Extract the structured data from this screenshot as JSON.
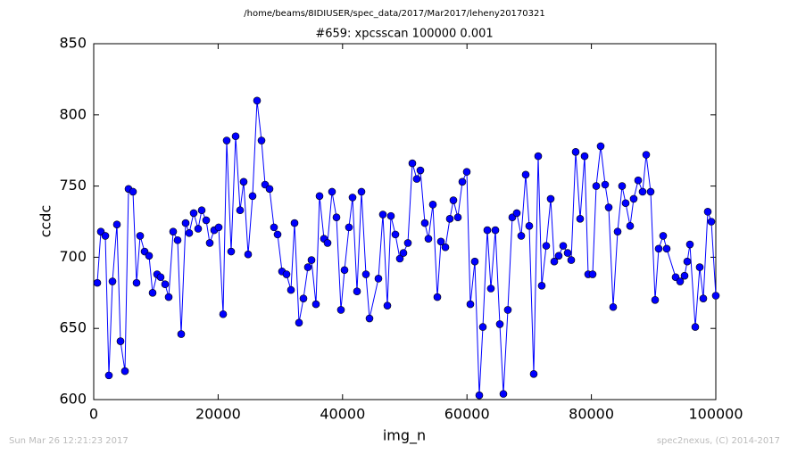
{
  "chart_data": {
    "type": "line",
    "header": "/home/beams/8IDIUSER/spec_data/2017/Mar2017/leheny20170321",
    "title": "#659: xpcsscan 100000 0.001",
    "x_label": "img_n",
    "y_label": "ccdc",
    "color": "#0000ff",
    "marker_edge_color": "#000000",
    "x": [
      574,
      1148,
      1865,
      2439,
      3013,
      3730,
      4304,
      5022,
      5595,
      6313,
      6887,
      7461,
      8178,
      8895,
      9469,
      10186,
      10760,
      11478,
      12052,
      12769,
      13486,
      14060,
      14777,
      15351,
      16069,
      16786,
      17360,
      18077,
      18651,
      19368,
      20086,
      20803,
      21377,
      22094,
      22812,
      23529,
      24103,
      24820,
      25538,
      26255,
      26972,
      27546,
      28264,
      28981,
      29555,
      30272,
      30990,
      31707,
      32281,
      32998,
      33715,
      34433,
      35007,
      35724,
      36298,
      37015,
      37589,
      38306,
      39024,
      39741,
      40315,
      41032,
      41606,
      42324,
      43041,
      43758,
      44332,
      45767,
      46484,
      47202,
      47776,
      48493,
      49210,
      49784,
      50501,
      51219,
      51936,
      52510,
      53227,
      53801,
      54519,
      55236,
      55810,
      56527,
      57244,
      57818,
      58536,
      59253,
      59970,
      60544,
      61262,
      61979,
      62553,
      63270,
      63844,
      64562,
      65279,
      65853,
      66570,
      67287,
      68005,
      68722,
      69439,
      70013,
      70731,
      71448,
      72022,
      72739,
      73457,
      74031,
      74748,
      75465,
      76183,
      76756,
      77474,
      78191,
      78909,
      79482,
      80200,
      80774,
      81491,
      82208,
      82782,
      83500,
      84217,
      84934,
      85508,
      86225,
      86799,
      87517,
      88234,
      88808,
      89525,
      90243,
      90816,
      91534,
      92108,
      93542,
      94260,
      94977,
      95408,
      95838,
      96699,
      97416,
      97990,
      98708,
      99281,
      100000
    ],
    "values": [
      682,
      718,
      715,
      617,
      683,
      723,
      641,
      620,
      748,
      746,
      682,
      715,
      704,
      701,
      675,
      688,
      686,
      681,
      672,
      718,
      712,
      646,
      724,
      717,
      731,
      720,
      733,
      726,
      710,
      719,
      721,
      660,
      782,
      704,
      785,
      733,
      753,
      702,
      743,
      810,
      782,
      751,
      748,
      721,
      716,
      690,
      688,
      677,
      724,
      654,
      671,
      693,
      698,
      667,
      743,
      713,
      710,
      746,
      728,
      663,
      691,
      721,
      742,
      676,
      746,
      688,
      657,
      685,
      730,
      666,
      729,
      716,
      699,
      703,
      710,
      766,
      755,
      761,
      724,
      713,
      737,
      672,
      711,
      707,
      727,
      740,
      728,
      753,
      760,
      667,
      697,
      603,
      651,
      719,
      678,
      719,
      653,
      604,
      663,
      728,
      731,
      715,
      758,
      722,
      618,
      771,
      680,
      708,
      741,
      697,
      701,
      708,
      703,
      698,
      774,
      727,
      771,
      688,
      688,
      750,
      778,
      751,
      735,
      665,
      718,
      750,
      738,
      722,
      741,
      754,
      746,
      772,
      746,
      670,
      706,
      715,
      706,
      686,
      683,
      687,
      697,
      709,
      651,
      693,
      671,
      732,
      725,
      673
    ],
    "xlim": [
      0,
      100000
    ],
    "ylim": [
      600,
      850
    ],
    "xticks": [
      0,
      20000,
      40000,
      60000,
      80000,
      100000
    ],
    "yticks": [
      600,
      650,
      700,
      750,
      800,
      850
    ]
  },
  "footer": {
    "timestamp": "Sun Mar 26 12:21:23 2017",
    "credit": "spec2nexus, (C) 2014-2017"
  }
}
